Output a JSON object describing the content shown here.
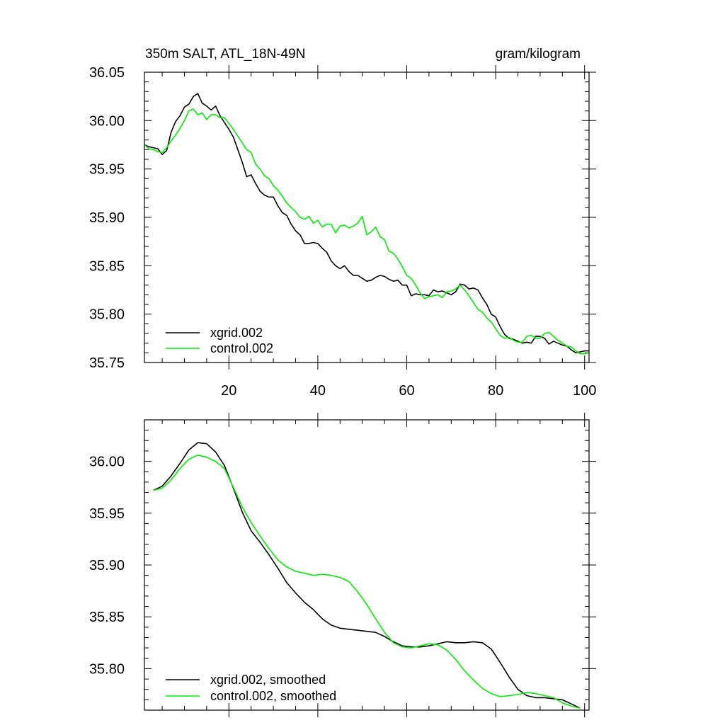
{
  "chart_data": [
    {
      "type": "line",
      "title_left": "350m SALT, ATL_18N-49N",
      "title_right": "gram/kilogram",
      "xlabel": "",
      "ylabel": "",
      "xlim": [
        1,
        101
      ],
      "ylim": [
        35.75,
        36.05
      ],
      "xticks": [
        20,
        40,
        60,
        80,
        100
      ],
      "xtick_labels": [
        "20",
        "40",
        "60",
        "80",
        "100"
      ],
      "yticks": [
        35.75,
        35.8,
        35.85,
        35.9,
        35.95,
        36.0,
        36.05
      ],
      "ytick_labels": [
        "35.75",
        "35.80",
        "35.85",
        "35.90",
        "35.95",
        "36.00",
        "36.05"
      ],
      "legend_position": "bottom-left",
      "series": [
        {
          "name": "xgrid.002",
          "color": "#000000",
          "x": [
            1,
            2,
            3,
            4,
            5,
            6,
            7,
            8,
            9,
            10,
            11,
            12,
            13,
            14,
            15,
            16,
            17,
            18,
            19,
            20,
            21,
            22,
            23,
            24,
            25,
            26,
            27,
            28,
            29,
            30,
            31,
            32,
            33,
            34,
            35,
            36,
            37,
            38,
            39,
            40,
            41,
            42,
            43,
            44,
            45,
            46,
            47,
            48,
            49,
            50,
            51,
            52,
            53,
            54,
            55,
            56,
            57,
            58,
            59,
            60,
            61,
            62,
            63,
            64,
            65,
            66,
            67,
            68,
            69,
            70,
            71,
            72,
            73,
            74,
            75,
            76,
            77,
            78,
            79,
            80,
            81,
            82,
            83,
            84,
            85,
            86,
            87,
            88,
            89,
            90,
            91,
            92,
            93,
            94,
            95,
            96,
            97,
            98,
            99,
            100,
            101
          ],
          "values": [
            35.975,
            35.973,
            35.972,
            35.971,
            35.965,
            35.969,
            35.988,
            35.999,
            36.005,
            36.014,
            36.017,
            36.025,
            36.028,
            36.018,
            36.015,
            36.011,
            36.015,
            36.005,
            35.998,
            35.991,
            35.983,
            35.97,
            35.957,
            35.942,
            35.944,
            35.935,
            35.927,
            35.923,
            35.921,
            35.921,
            35.912,
            35.905,
            35.902,
            35.893,
            35.886,
            35.882,
            35.873,
            35.873,
            35.874,
            35.873,
            35.868,
            35.864,
            35.855,
            35.85,
            35.847,
            35.85,
            35.844,
            35.84,
            35.84,
            35.837,
            35.834,
            35.835,
            35.838,
            35.84,
            35.839,
            35.836,
            35.834,
            35.835,
            35.83,
            35.83,
            35.819,
            35.821,
            35.82,
            35.82,
            35.819,
            35.825,
            35.823,
            35.824,
            35.822,
            35.82,
            35.823,
            35.831,
            35.83,
            35.826,
            35.827,
            35.825,
            35.817,
            35.81,
            35.8,
            35.797,
            35.787,
            35.779,
            35.775,
            35.774,
            35.772,
            35.77,
            35.771,
            35.77,
            35.777,
            35.777,
            35.775,
            35.769,
            35.772,
            35.77,
            35.768,
            35.767,
            35.763,
            35.76,
            35.761,
            35.762,
            35.762
          ]
        },
        {
          "name": "control.002",
          "color": "#00ee00",
          "x": [
            1,
            2,
            3,
            4,
            5,
            6,
            7,
            8,
            9,
            10,
            11,
            12,
            13,
            14,
            15,
            16,
            17,
            18,
            19,
            20,
            21,
            22,
            23,
            24,
            25,
            26,
            27,
            28,
            29,
            30,
            31,
            32,
            33,
            34,
            35,
            36,
            37,
            38,
            39,
            40,
            41,
            42,
            43,
            44,
            45,
            46,
            47,
            48,
            49,
            50,
            51,
            52,
            53,
            54,
            55,
            56,
            57,
            58,
            59,
            60,
            61,
            62,
            63,
            64,
            65,
            66,
            67,
            68,
            69,
            70,
            71,
            72,
            73,
            74,
            75,
            76,
            77,
            78,
            79,
            80,
            81,
            82,
            83,
            84,
            85,
            86,
            87,
            88,
            89,
            90,
            91,
            92,
            93,
            94,
            95,
            96,
            97,
            98,
            99,
            100,
            101
          ],
          "values": [
            35.975,
            35.971,
            35.97,
            35.968,
            35.967,
            35.972,
            35.979,
            35.985,
            35.992,
            36.0,
            36.01,
            36.012,
            36.006,
            36.008,
            36.001,
            36.006,
            36.006,
            36.003,
            36.003,
            35.997,
            35.991,
            35.984,
            35.977,
            35.97,
            35.967,
            35.955,
            35.95,
            35.943,
            35.94,
            35.933,
            35.928,
            35.922,
            35.915,
            35.91,
            35.906,
            35.9,
            35.898,
            35.901,
            35.894,
            35.897,
            35.89,
            35.893,
            35.893,
            35.884,
            35.891,
            35.892,
            35.889,
            35.891,
            35.894,
            35.901,
            35.882,
            35.885,
            35.89,
            35.88,
            35.877,
            35.865,
            35.863,
            35.857,
            35.849,
            35.84,
            35.837,
            35.83,
            35.822,
            35.816,
            35.818,
            35.819,
            35.82,
            35.817,
            35.823,
            35.824,
            35.826,
            35.83,
            35.825,
            35.819,
            35.812,
            35.805,
            35.802,
            35.796,
            35.792,
            35.785,
            35.778,
            35.775,
            35.776,
            35.773,
            35.771,
            35.771,
            35.777,
            35.778,
            35.775,
            35.775,
            35.78,
            35.781,
            35.777,
            35.773,
            35.77,
            35.767,
            35.766,
            35.762,
            35.759,
            35.759,
            35.76
          ]
        }
      ]
    },
    {
      "type": "line",
      "title_left": "",
      "title_right": "",
      "xlabel": "",
      "ylabel": "",
      "xlim": [
        1,
        101
      ],
      "ylim": [
        35.76,
        36.04
      ],
      "xticks": [
        20,
        40,
        60,
        80,
        100
      ],
      "xtick_labels": [],
      "yticks": [
        35.8,
        35.85,
        35.9,
        35.95,
        36.0
      ],
      "ytick_labels": [
        "35.80",
        "35.85",
        "35.90",
        "35.95",
        "36.00"
      ],
      "legend_position": "bottom-left",
      "series": [
        {
          "name": "xgrid.002, smoothed",
          "color": "#000000",
          "x": [
            3,
            5,
            7,
            9,
            11,
            13,
            15,
            17,
            19,
            21,
            23,
            25,
            27,
            29,
            31,
            33,
            35,
            37,
            39,
            41,
            43,
            45,
            47,
            49,
            51,
            53,
            55,
            57,
            59,
            61,
            63,
            65,
            67,
            69,
            71,
            73,
            75,
            77,
            79,
            81,
            83,
            85,
            87,
            89,
            91,
            93,
            95,
            97,
            99
          ],
          "values": [
            35.972,
            35.976,
            35.986,
            35.998,
            36.011,
            36.018,
            36.017,
            36.009,
            35.996,
            35.974,
            35.951,
            35.933,
            35.922,
            35.91,
            35.897,
            35.883,
            35.873,
            35.864,
            35.857,
            35.848,
            35.842,
            35.839,
            35.838,
            35.837,
            35.836,
            35.835,
            35.831,
            35.826,
            35.822,
            35.821,
            35.821,
            35.822,
            35.824,
            35.826,
            35.825,
            35.825,
            35.826,
            35.825,
            35.819,
            35.806,
            35.792,
            35.78,
            35.774,
            35.772,
            35.772,
            35.771,
            35.77,
            35.766,
            35.762
          ]
        },
        {
          "name": "control.002, smoothed",
          "color": "#00ee00",
          "x": [
            3,
            5,
            7,
            9,
            11,
            13,
            15,
            17,
            19,
            21,
            23,
            25,
            27,
            29,
            31,
            33,
            35,
            37,
            39,
            41,
            43,
            45,
            47,
            49,
            51,
            53,
            55,
            57,
            59,
            61,
            63,
            65,
            67,
            69,
            71,
            73,
            75,
            77,
            79,
            81,
            83,
            85,
            87,
            89,
            91,
            93,
            95,
            97,
            99
          ],
          "values": [
            35.972,
            35.974,
            35.982,
            35.993,
            36.002,
            36.006,
            36.004,
            36.0,
            35.993,
            35.975,
            35.956,
            35.941,
            35.928,
            35.916,
            35.905,
            35.898,
            35.894,
            35.892,
            35.89,
            35.891,
            35.89,
            35.888,
            35.884,
            35.874,
            35.862,
            35.848,
            35.835,
            35.825,
            35.821,
            35.82,
            35.822,
            35.824,
            35.823,
            35.818,
            35.809,
            35.798,
            35.789,
            35.781,
            35.776,
            35.773,
            35.774,
            35.775,
            35.777,
            35.776,
            35.774,
            35.772,
            35.767,
            35.764,
            35.762
          ]
        }
      ]
    }
  ]
}
